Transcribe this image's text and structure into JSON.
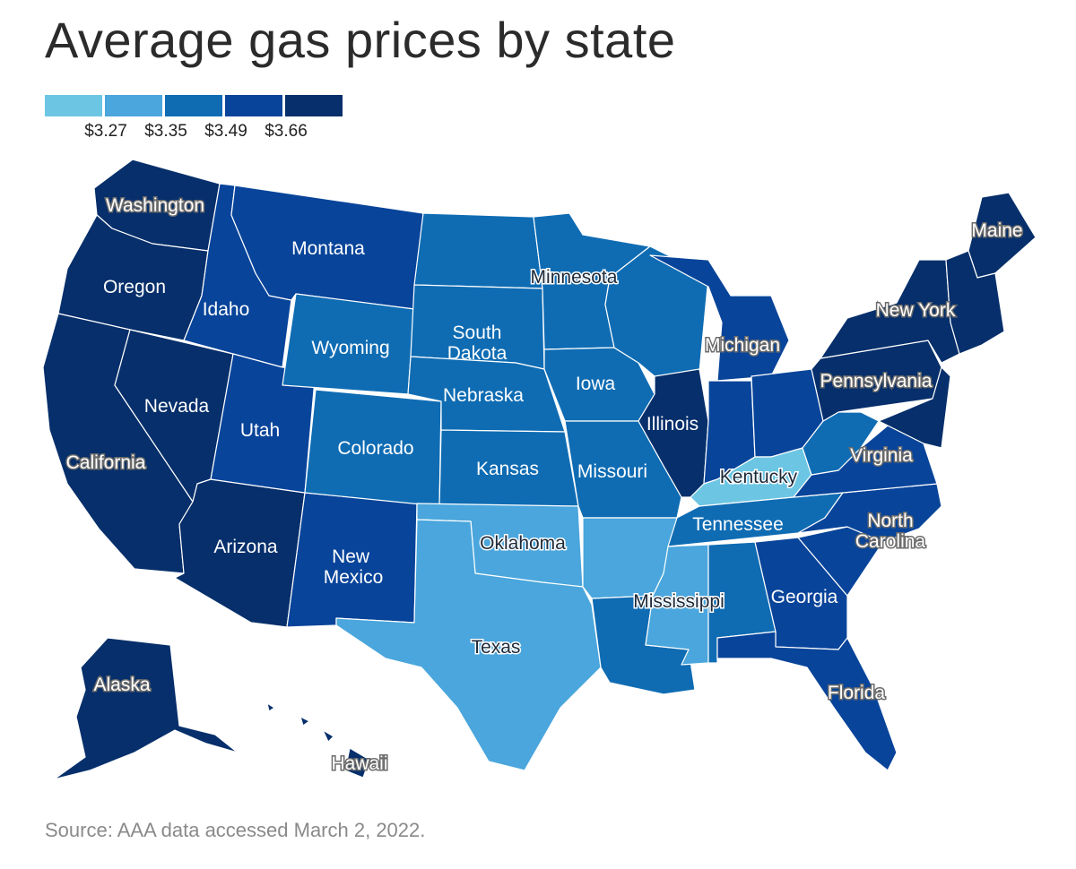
{
  "title": "Average gas prices by state",
  "source": "Source: AAA data accessed March 2, 2022.",
  "legend": {
    "colors": [
      "#6cc6e3",
      "#4aa6dc",
      "#0f6cb3",
      "#08449a",
      "#062f6b"
    ],
    "ticks": [
      "$3.27",
      "$3.35",
      "$3.49",
      "$3.66"
    ]
  },
  "colors": {
    "tier1": "#6cc6e3",
    "tier2": "#4aa6dc",
    "tier3": "#0f6cb3",
    "tier4": "#08449a",
    "tier5": "#062f6b"
  },
  "states": {
    "washington": {
      "label": "Washington",
      "tier": 5
    },
    "oregon": {
      "label": "Oregon",
      "tier": 5
    },
    "california": {
      "label": "California",
      "tier": 5
    },
    "nevada": {
      "label": "Nevada",
      "tier": 5
    },
    "arizona": {
      "label": "Arizona",
      "tier": 5
    },
    "idaho": {
      "label": "Idaho",
      "tier": 4
    },
    "montana": {
      "label": "Montana",
      "tier": 4
    },
    "utah": {
      "label": "Utah",
      "tier": 4
    },
    "new_mexico": {
      "label": "New Mexico",
      "tier": 4
    },
    "wyoming": {
      "label": "Wyoming",
      "tier": 3
    },
    "colorado": {
      "label": "Colorado",
      "tier": 3
    },
    "north_dakota": {
      "label": "",
      "tier": 3
    },
    "south_dakota": {
      "label": "South Dakota",
      "tier": 3
    },
    "nebraska": {
      "label": "Nebraska",
      "tier": 3
    },
    "kansas": {
      "label": "Kansas",
      "tier": 3
    },
    "oklahoma": {
      "label": "Oklahoma",
      "tier": 2
    },
    "texas": {
      "label": "Texas",
      "tier": 2
    },
    "minnesota": {
      "label": "Minnesota",
      "tier": 3
    },
    "iowa": {
      "label": "Iowa",
      "tier": 3
    },
    "missouri": {
      "label": "Missouri",
      "tier": 3
    },
    "arkansas": {
      "label": "",
      "tier": 2
    },
    "louisiana": {
      "label": "",
      "tier": 3
    },
    "wisconsin": {
      "label": "",
      "tier": 3
    },
    "illinois": {
      "label": "Illinois",
      "tier": 5
    },
    "michigan": {
      "label": "Michigan",
      "tier": 4
    },
    "indiana": {
      "label": "",
      "tier": 4
    },
    "ohio": {
      "label": "",
      "tier": 4
    },
    "kentucky": {
      "label": "Kentucky",
      "tier": 1
    },
    "tennessee": {
      "label": "Tennessee",
      "tier": 3
    },
    "mississippi": {
      "label": "Mississippi",
      "tier": 2
    },
    "alabama": {
      "label": "",
      "tier": 3
    },
    "georgia": {
      "label": "Georgia",
      "tier": 4
    },
    "florida": {
      "label": "Florida",
      "tier": 4
    },
    "south_carolina": {
      "label": "",
      "tier": 4
    },
    "north_carolina": {
      "label": "North Carolina",
      "tier": 4
    },
    "virginia": {
      "label": "Virginia",
      "tier": 4
    },
    "west_virginia": {
      "label": "",
      "tier": 3
    },
    "pennsylvania": {
      "label": "Pennsylvania",
      "tier": 5
    },
    "new_york": {
      "label": "New York",
      "tier": 5
    },
    "maine": {
      "label": "Maine",
      "tier": 5
    },
    "alaska": {
      "label": "Alaska",
      "tier": 5
    },
    "hawaii": {
      "label": "Hawaii",
      "tier": 5
    }
  }
}
